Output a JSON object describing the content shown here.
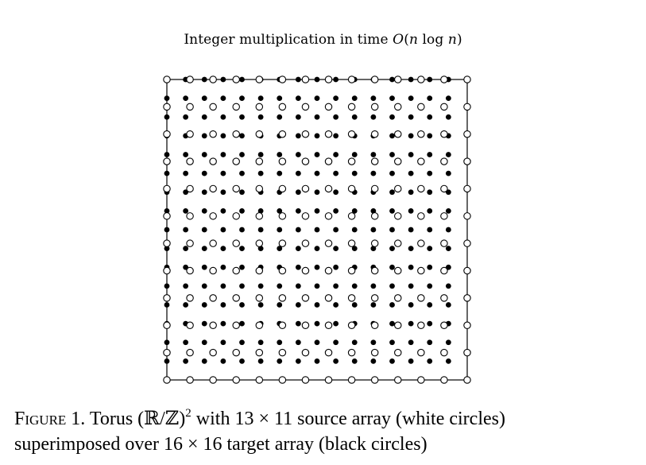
{
  "header": {
    "text_prefix": "Integer multiplication in time ",
    "math_O": "O",
    "math_paren_open": "(",
    "math_n1": "n",
    "math_log": " log ",
    "math_n2": "n",
    "math_paren_close": ")"
  },
  "figure": {
    "source_grid": {
      "cols": 13,
      "rows": 11,
      "fill": "#ffffff",
      "stroke": "#000000"
    },
    "target_grid": {
      "cols": 16,
      "rows": 16,
      "fill": "#000000"
    },
    "frame_color": "#000000"
  },
  "caption": {
    "label": "Figure 1.",
    "text_a": " Torus (ℝ/ℤ)",
    "sup": "2",
    "text_b": " with 13 × 11 source array (white circles)",
    "line2": "superimposed over 16 × 16 target array (black circles)"
  }
}
